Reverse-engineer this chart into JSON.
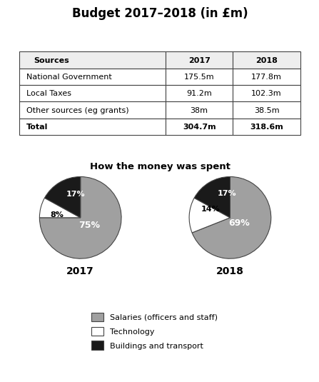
{
  "title": "Budget 2017–2018 (in £m)",
  "table_headers": [
    "Sources",
    "2017",
    "2018"
  ],
  "table_rows": [
    [
      "National Government",
      "175.5m",
      "177.8m"
    ],
    [
      "Local Taxes",
      "91.2m",
      "102.3m"
    ],
    [
      "Other sources (eg grants)",
      "38m",
      "38.5m"
    ],
    [
      "Total",
      "304.7m",
      "318.6m"
    ]
  ],
  "pie_title": "How the money was spent",
  "pie2017_values": [
    75,
    8,
    17
  ],
  "pie2018_values": [
    69,
    14,
    17
  ],
  "pie_colors": [
    "#a0a0a0",
    "#ffffff",
    "#1a1a1a"
  ],
  "pie_edgecolor": "#444444",
  "pie2017_year": "2017",
  "pie2018_year": "2018",
  "legend_labels": [
    "Salaries (officers and staff)",
    "Technology",
    "Buildings and transport"
  ],
  "legend_colors": [
    "#a0a0a0",
    "#ffffff",
    "#1a1a1a"
  ],
  "background_color": "#ffffff"
}
